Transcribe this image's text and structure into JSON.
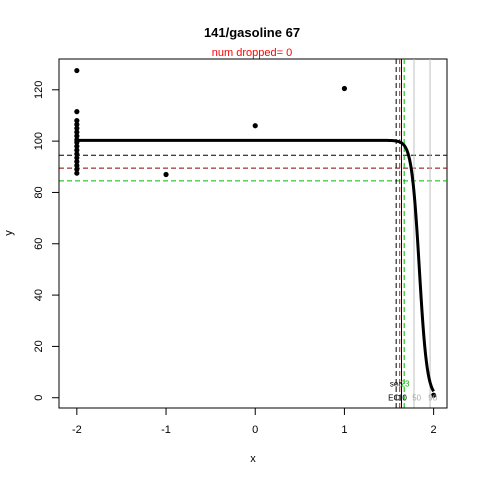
{
  "chart_data": {
    "type": "scatter",
    "title": "141/gasoline 67",
    "subtitle": "num dropped= 0",
    "xlabel": "x",
    "ylabel": "y",
    "xlim": [
      -2.2,
      2.15
    ],
    "ylim": [
      -4,
      132
    ],
    "x_ticks": [
      -2,
      -1,
      0,
      1,
      2
    ],
    "x_tick_labels": [
      "-2",
      "-1",
      "0",
      "1",
      "2"
    ],
    "y_ticks": [
      0,
      20,
      40,
      60,
      80,
      100,
      120
    ],
    "y_tick_labels": [
      "0",
      "20",
      "40",
      "60",
      "80",
      "100",
      "120"
    ],
    "grid": false,
    "points": [
      [
        -2,
        127.5
      ],
      [
        -2,
        111.5
      ],
      [
        -2,
        108
      ],
      [
        -2,
        106.5
      ],
      [
        -2,
        105
      ],
      [
        -2,
        103.5
      ],
      [
        -2,
        102
      ],
      [
        -2,
        100.5
      ],
      [
        -2,
        99.5
      ],
      [
        -2,
        98
      ],
      [
        -2,
        96.5
      ],
      [
        -2,
        95
      ],
      [
        -2,
        93.5
      ],
      [
        -2,
        92
      ],
      [
        -2,
        90.5
      ],
      [
        -2,
        89
      ],
      [
        -2,
        87.5
      ],
      [
        -1,
        87
      ],
      [
        0,
        106
      ],
      [
        1,
        120.5
      ],
      [
        2,
        1
      ]
    ],
    "fitted_curve": {
      "top": 100.3,
      "bottom": 0,
      "midpoint": 1.84,
      "hill_slope": 23,
      "x_start": -2,
      "x_end": 2
    },
    "hlines": [
      {
        "y": 94.5,
        "color": "#000000",
        "style": "dashed"
      },
      {
        "y": 89.5,
        "color": "#8b0000",
        "style": "dashed"
      },
      {
        "y": 84.5,
        "color": "#00bb00",
        "style": "dashed"
      }
    ],
    "vlines": [
      {
        "x": 1.58,
        "color": "#000000",
        "style": "dashed"
      },
      {
        "x": 1.62,
        "color": "#ff0000",
        "style": "dashed"
      },
      {
        "x": 1.67,
        "color": "#00bb00",
        "style": "dashed"
      },
      {
        "x": 1.64,
        "color": "#000000",
        "style": "solid"
      },
      {
        "x": 1.78,
        "color": "#c0c0c0",
        "style": "solid"
      },
      {
        "x": 1.96,
        "color": "#c0c0c0",
        "style": "solid"
      }
    ],
    "annotations": [
      {
        "text": "sea",
        "x": 1.51,
        "y": 5.5,
        "color": "#000000"
      },
      {
        "text": "23",
        "x": 1.63,
        "y": 5.5,
        "color": "#00bb00"
      },
      {
        "text": "EC",
        "x": 1.49,
        "y": 0,
        "color": "#000000"
      },
      {
        "text": "10",
        "x": 1.6,
        "y": 0,
        "color": "#000000"
      },
      {
        "text": "50",
        "x": 1.76,
        "y": 0,
        "color": "#aaaaaa"
      },
      {
        "text": "90",
        "x": 1.94,
        "y": 0,
        "color": "#aaaaaa"
      }
    ]
  }
}
